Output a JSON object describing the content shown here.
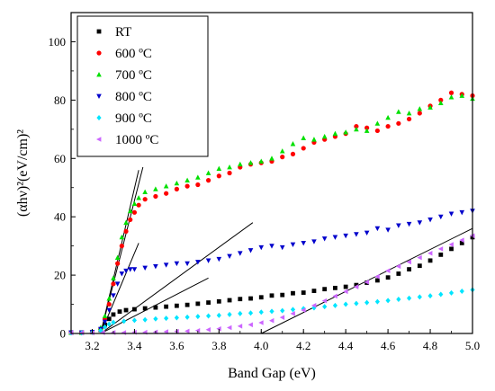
{
  "chart_data": {
    "type": "scatter",
    "xlabel": "Band Gap (eV)",
    "ylabel": "(αhν)²(eV/cm)²",
    "xlim": [
      3.1,
      5.0
    ],
    "ylim": [
      0,
      110
    ],
    "xticks": [
      "3.2",
      "3.4",
      "3.6",
      "3.8",
      "4.0",
      "4.2",
      "4.4",
      "4.6",
      "4.8",
      "5.0"
    ],
    "xtick_values": [
      3.2,
      3.4,
      3.6,
      3.8,
      4.0,
      4.2,
      4.4,
      4.6,
      4.8,
      5.0
    ],
    "yticks": [
      "0",
      "20",
      "40",
      "60",
      "80",
      "100"
    ],
    "ytick_values": [
      0,
      20,
      40,
      60,
      80,
      100
    ],
    "legend_placement": "top-left",
    "series": [
      {
        "name": "RT",
        "color": "#000000",
        "marker": "square",
        "x": [
          3.1,
          3.15,
          3.2,
          3.24,
          3.26,
          3.28,
          3.3,
          3.33,
          3.36,
          3.4,
          3.45,
          3.5,
          3.55,
          3.6,
          3.65,
          3.7,
          3.75,
          3.8,
          3.85,
          3.9,
          3.95,
          4.0,
          4.05,
          4.1,
          4.15,
          4.2,
          4.25,
          4.3,
          4.35,
          4.4,
          4.45,
          4.5,
          4.55,
          4.6,
          4.65,
          4.7,
          4.75,
          4.8,
          4.85,
          4.9,
          4.95,
          5.0
        ],
        "y": [
          0.3,
          0.3,
          0.5,
          1.2,
          3.0,
          5.0,
          6.5,
          7.5,
          8.0,
          8.3,
          8.6,
          8.9,
          9.2,
          9.5,
          9.8,
          10.2,
          10.6,
          11.0,
          11.4,
          11.8,
          12.0,
          12.4,
          13.0,
          13.2,
          13.8,
          14.0,
          14.6,
          15.2,
          15.6,
          16.0,
          16.6,
          17.4,
          18.2,
          19.2,
          20.5,
          22.0,
          23.2,
          25.0,
          27.0,
          29.0,
          31.0,
          33.0
        ]
      },
      {
        "name": "600 ºC",
        "color": "#ff0000",
        "marker": "circle",
        "x": [
          3.1,
          3.15,
          3.2,
          3.24,
          3.26,
          3.28,
          3.3,
          3.32,
          3.34,
          3.36,
          3.38,
          3.4,
          3.42,
          3.45,
          3.5,
          3.55,
          3.6,
          3.65,
          3.7,
          3.75,
          3.8,
          3.85,
          3.9,
          3.95,
          4.0,
          4.05,
          4.1,
          4.15,
          4.2,
          4.25,
          4.3,
          4.35,
          4.4,
          4.45,
          4.5,
          4.55,
          4.6,
          4.65,
          4.7,
          4.75,
          4.8,
          4.85,
          4.9,
          4.95,
          5.0
        ],
        "y": [
          0.3,
          0.3,
          0.5,
          1.5,
          5.0,
          10.0,
          17.0,
          24.0,
          30.0,
          35.0,
          39.0,
          41.5,
          44.0,
          46.0,
          47.0,
          48.0,
          49.5,
          50.5,
          51.0,
          52.5,
          54.0,
          55.0,
          57.0,
          58.0,
          58.5,
          59.0,
          60.5,
          61.5,
          63.5,
          65.5,
          66.5,
          67.5,
          68.5,
          71.0,
          70.5,
          69.5,
          71.0,
          72.0,
          73.5,
          75.5,
          78.0,
          80.0,
          82.5,
          82.0,
          81.5
        ]
      },
      {
        "name": "700 ºC",
        "color": "#00e000",
        "marker": "triangle-up",
        "x": [
          3.1,
          3.15,
          3.2,
          3.24,
          3.26,
          3.28,
          3.3,
          3.32,
          3.34,
          3.36,
          3.38,
          3.4,
          3.42,
          3.45,
          3.5,
          3.55,
          3.6,
          3.65,
          3.7,
          3.75,
          3.8,
          3.85,
          3.9,
          3.95,
          4.0,
          4.05,
          4.1,
          4.15,
          4.2,
          4.25,
          4.3,
          4.35,
          4.4,
          4.45,
          4.5,
          4.55,
          4.6,
          4.65,
          4.7,
          4.75,
          4.8,
          4.85,
          4.9,
          4.95,
          5.0
        ],
        "y": [
          0.3,
          0.3,
          0.6,
          2.0,
          6.0,
          12.0,
          19.0,
          26.0,
          33.0,
          38.0,
          42.0,
          44.5,
          46.5,
          48.5,
          49.5,
          50.5,
          51.5,
          52.5,
          53.5,
          55.0,
          56.5,
          57.0,
          58.0,
          58.5,
          59.0,
          60.0,
          62.5,
          65.0,
          67.0,
          66.5,
          67.5,
          68.5,
          69.0,
          70.0,
          69.5,
          72.0,
          74.0,
          76.0,
          75.5,
          77.0,
          77.5,
          79.0,
          81.0,
          81.5,
          80.5
        ]
      },
      {
        "name": "800 ºC",
        "color": "#0000cc",
        "marker": "triangle-down",
        "x": [
          3.1,
          3.15,
          3.2,
          3.24,
          3.26,
          3.28,
          3.3,
          3.32,
          3.34,
          3.36,
          3.38,
          3.4,
          3.45,
          3.5,
          3.55,
          3.6,
          3.65,
          3.7,
          3.75,
          3.8,
          3.85,
          3.9,
          3.95,
          4.0,
          4.05,
          4.1,
          4.15,
          4.2,
          4.25,
          4.3,
          4.35,
          4.4,
          4.45,
          4.5,
          4.55,
          4.6,
          4.65,
          4.7,
          4.75,
          4.8,
          4.85,
          4.9,
          4.95,
          5.0
        ],
        "y": [
          0.3,
          0.3,
          0.5,
          1.5,
          4.0,
          8.0,
          13.0,
          17.0,
          20.5,
          21.5,
          22.0,
          22.0,
          22.5,
          23.0,
          23.5,
          24.0,
          24.0,
          24.5,
          25.0,
          25.5,
          26.5,
          27.5,
          28.5,
          29.5,
          30.0,
          29.5,
          30.5,
          31.0,
          31.5,
          32.5,
          33.0,
          33.5,
          34.0,
          34.5,
          36.0,
          35.5,
          37.0,
          37.5,
          38.0,
          39.0,
          40.0,
          41.0,
          41.5,
          42.0
        ]
      },
      {
        "name": "900 ºC",
        "color": "#00e5ff",
        "marker": "diamond",
        "x": [
          3.1,
          3.15,
          3.2,
          3.24,
          3.26,
          3.28,
          3.3,
          3.35,
          3.4,
          3.45,
          3.5,
          3.55,
          3.6,
          3.65,
          3.7,
          3.75,
          3.8,
          3.85,
          3.9,
          3.95,
          4.0,
          4.05,
          4.1,
          4.15,
          4.2,
          4.25,
          4.3,
          4.35,
          4.4,
          4.45,
          4.5,
          4.55,
          4.6,
          4.65,
          4.7,
          4.75,
          4.8,
          4.85,
          4.9,
          4.95,
          5.0
        ],
        "y": [
          0.2,
          0.2,
          0.4,
          1.0,
          2.2,
          3.2,
          3.8,
          4.2,
          4.5,
          4.7,
          5.0,
          5.2,
          5.4,
          5.6,
          5.8,
          6.0,
          6.2,
          6.5,
          6.8,
          7.0,
          7.3,
          7.6,
          7.8,
          8.2,
          8.5,
          8.8,
          9.2,
          9.6,
          10.0,
          10.3,
          10.6,
          10.9,
          11.3,
          11.7,
          12.1,
          12.5,
          12.9,
          13.4,
          13.9,
          14.5,
          15.0
        ]
      },
      {
        "name": "1000 ºC",
        "color": "#cc66ff",
        "marker": "triangle-left",
        "x": [
          3.1,
          3.15,
          3.2,
          3.25,
          3.3,
          3.35,
          3.4,
          3.45,
          3.5,
          3.55,
          3.6,
          3.65,
          3.7,
          3.75,
          3.8,
          3.85,
          3.9,
          3.95,
          4.0,
          4.05,
          4.1,
          4.15,
          4.2,
          4.25,
          4.3,
          4.35,
          4.4,
          4.45,
          4.5,
          4.55,
          4.6,
          4.65,
          4.7,
          4.75,
          4.8,
          4.85,
          4.9,
          4.95,
          5.0
        ],
        "y": [
          0.2,
          0.2,
          0.2,
          0.3,
          0.3,
          0.3,
          0.4,
          0.4,
          0.5,
          0.6,
          0.7,
          0.8,
          1.0,
          1.3,
          1.6,
          2.0,
          2.5,
          3.0,
          3.7,
          4.4,
          5.5,
          6.8,
          8.0,
          9.6,
          11.2,
          12.8,
          14.4,
          16.0,
          17.6,
          19.5,
          21.5,
          23.0,
          24.5,
          26.0,
          27.5,
          29.0,
          30.5,
          32.0,
          33.5
        ]
      }
    ],
    "fit_lines": [
      {
        "color": "#000000",
        "x": [
          3.24,
          3.44
        ],
        "y": [
          0,
          57
        ]
      },
      {
        "color": "#000000",
        "x": [
          3.24,
          3.42
        ],
        "y": [
          0,
          56
        ]
      },
      {
        "color": "#000000",
        "x": [
          3.24,
          3.42
        ],
        "y": [
          0,
          31
        ]
      },
      {
        "color": "#000000",
        "x": [
          3.24,
          3.96
        ],
        "y": [
          0,
          38
        ]
      },
      {
        "color": "#000000",
        "x": [
          3.24,
          3.75
        ],
        "y": [
          0,
          19
        ]
      },
      {
        "color": "#000000",
        "x": [
          4.0,
          5.0
        ],
        "y": [
          0,
          36
        ]
      }
    ]
  }
}
